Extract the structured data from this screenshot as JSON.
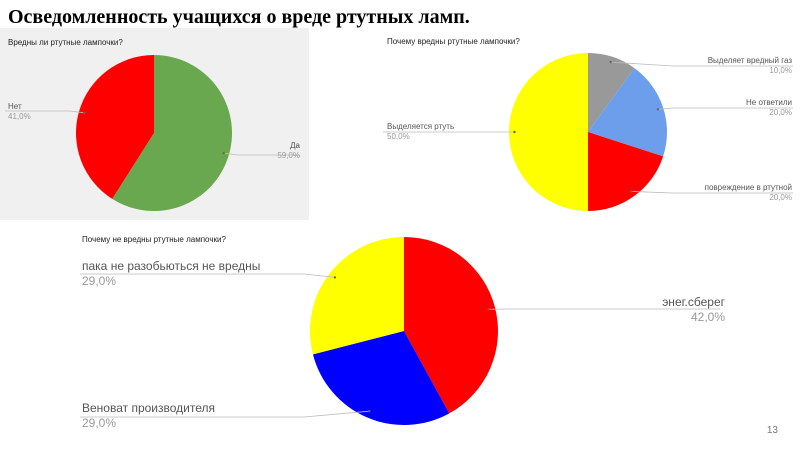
{
  "slide": {
    "title": "Осведомленность учащихся о вреде ртутных ламп.",
    "page_number": "13"
  },
  "colors": {
    "green": "#6aa84f",
    "red": "#ff0000",
    "yellow": "#ffff00",
    "grey": "#999999",
    "light_blue": "#6d9eeb",
    "blue": "#0000ff",
    "panel_background": "#f0f0f0"
  },
  "chart_data": [
    {
      "type": "pie",
      "title": "Вредны ли ртутные лампочки?",
      "slices": [
        {
          "label": "Да",
          "value": 59.0,
          "display": "59,0%",
          "color": "#6aa84f"
        },
        {
          "label": "Нет",
          "value": 41.0,
          "display": "41,0%",
          "color": "#ff0000"
        }
      ]
    },
    {
      "type": "pie",
      "title": "Почему вредны ртутные лампочки?",
      "slices": [
        {
          "label": "Выделяет вредный газ",
          "value": 10.0,
          "display": "10,0%",
          "color": "#999999"
        },
        {
          "label": "Не ответили",
          "value": 20.0,
          "display": "20,0%",
          "color": "#6d9eeb"
        },
        {
          "label": "повреждение в ртутной",
          "value": 20.0,
          "display": "20,0%",
          "color": "#ff0000"
        },
        {
          "label": "Выделяется ртуть",
          "value": 50.0,
          "display": "50,0%",
          "color": "#ffff00"
        }
      ]
    },
    {
      "type": "pie",
      "title": "Почему не вредны ртутные лампочки?",
      "slices": [
        {
          "label": "энег.сберег",
          "value": 42.0,
          "display": "42,0%",
          "color": "#ff0000"
        },
        {
          "label": "Веноват  производителя",
          "value": 29.0,
          "display": "29,0%",
          "color": "#0000ff"
        },
        {
          "label": "пака не разобьються не вредны",
          "value": 29.0,
          "display": "29,0%",
          "color": "#ffff00"
        }
      ]
    }
  ]
}
